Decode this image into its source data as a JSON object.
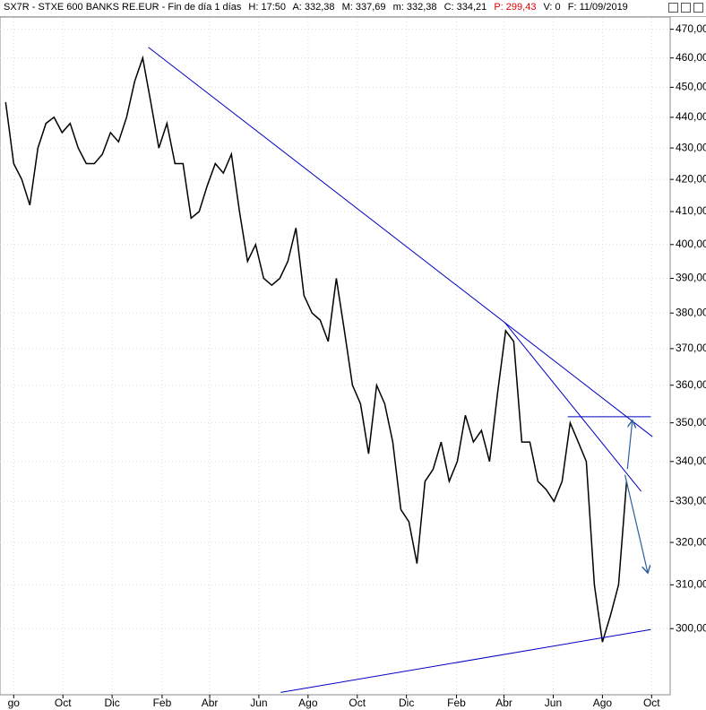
{
  "header": {
    "title": "SX7R - STXE 600 BANKS RE.EUR - Fin de día 1 días",
    "fields": [
      "H: 17:50",
      "A: 332,38",
      "M: 337,69",
      "m: 332,38",
      "C: 334,21",
      "P: 299,43",
      "V: 0",
      "F: 11/09/2019"
    ]
  },
  "chart_data": {
    "type": "line",
    "log_y": true,
    "grid": true,
    "color": "#000000",
    "line_color": "#0000c0",
    "arrow_color": "#2a5f9e",
    "x": [
      -10,
      0,
      10,
      20,
      30,
      40,
      50,
      60,
      70,
      80,
      90,
      100,
      110,
      120,
      130,
      140,
      150,
      160,
      170,
      180,
      190,
      200,
      210,
      220,
      230,
      240,
      250,
      260,
      270,
      280,
      290,
      300,
      310,
      320,
      330,
      340,
      350,
      360,
      370,
      380,
      390,
      400,
      410,
      420,
      430,
      440,
      450,
      460,
      470,
      480,
      490,
      500,
      510,
      520,
      530,
      540,
      550,
      560,
      570,
      580,
      590,
      600,
      610,
      620,
      630,
      640,
      650,
      660,
      670,
      680,
      690,
      700,
      710,
      720,
      730,
      740,
      750,
      760
    ],
    "values": [
      445,
      425,
      420,
      412,
      430,
      438,
      440,
      435,
      438,
      430,
      425,
      425,
      428,
      435,
      432,
      440,
      452,
      460,
      445,
      430,
      438,
      425,
      425,
      408,
      410,
      418,
      425,
      422,
      428,
      410,
      395,
      400,
      390,
      388,
      390,
      395,
      405,
      385,
      380,
      378,
      372,
      390,
      375,
      360,
      355,
      342,
      360,
      355,
      345,
      328,
      325,
      315,
      335,
      338,
      345,
      335,
      340,
      352,
      345,
      348,
      340,
      358,
      375,
      372,
      345,
      345,
      335,
      333,
      330,
      335,
      350,
      345,
      340,
      310,
      297,
      303,
      310,
      335
    ],
    "xlim": [
      -17,
      814
    ],
    "ylim": [
      285.5,
      474
    ],
    "xticks": [
      {
        "value": 0,
        "label": "go"
      },
      {
        "value": 61,
        "label": "Oct"
      },
      {
        "value": 122,
        "label": "Dic"
      },
      {
        "value": 184,
        "label": "Feb"
      },
      {
        "value": 243,
        "label": "Abr"
      },
      {
        "value": 304,
        "label": "Jun"
      },
      {
        "value": 365,
        "label": "Ago"
      },
      {
        "value": 426,
        "label": "Oct"
      },
      {
        "value": 487,
        "label": "Dic"
      },
      {
        "value": 549,
        "label": "Feb"
      },
      {
        "value": 608,
        "label": "Abr"
      },
      {
        "value": 669,
        "label": "Jun"
      },
      {
        "value": 730,
        "label": "Ago"
      },
      {
        "value": 791,
        "label": "Oct"
      }
    ],
    "yticks": [
      {
        "value": 300,
        "label": "300,00"
      },
      {
        "value": 310,
        "label": "310,00"
      },
      {
        "value": 320,
        "label": "320,00"
      },
      {
        "value": 330,
        "label": "330,00"
      },
      {
        "value": 340,
        "label": "340,00"
      },
      {
        "value": 350,
        "label": "350,00"
      },
      {
        "value": 360,
        "label": "360,00"
      },
      {
        "value": 370,
        "label": "370,00"
      },
      {
        "value": 380,
        "label": "380,00"
      },
      {
        "value": 390,
        "label": "390,00"
      },
      {
        "value": 400,
        "label": "400,00"
      },
      {
        "value": 410,
        "label": "410,00"
      },
      {
        "value": 420,
        "label": "420,00"
      },
      {
        "value": 430,
        "label": "430,00"
      },
      {
        "value": 440,
        "label": "440,00"
      },
      {
        "value": 450,
        "label": "450,00"
      },
      {
        "value": 460,
        "label": "460,00"
      },
      {
        "value": 470,
        "label": "470,00"
      }
    ],
    "lines": [
      {
        "x": [
          167,
          792
        ],
        "y": [
          463.7,
          346.4
        ]
      },
      {
        "x": [
          609,
          778
        ],
        "y": [
          377.3,
          332.5
        ]
      },
      {
        "x": [
          687,
          790
        ],
        "y": [
          351.6,
          351.6
        ]
      },
      {
        "x": [
          331,
          790
        ],
        "y": [
          286.0,
          299.8
        ]
      }
    ],
    "arrows": [
      {
        "x": [
          761,
          767
        ],
        "y": [
          338.1,
          350.4
        ]
      },
      {
        "x": [
          758,
          786
        ],
        "y": [
          336.6,
          313.0
        ]
      }
    ]
  }
}
